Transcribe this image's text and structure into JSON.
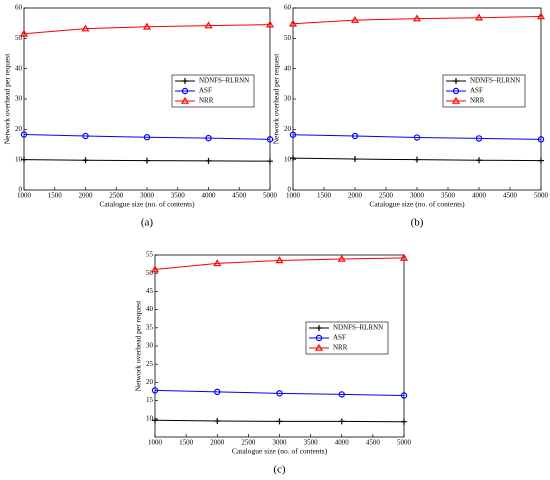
{
  "chart_data": [
    {
      "type": "line",
      "label": "(a)",
      "x_label": "Catalogue size (no. of contents)",
      "y_label": "Network overhead per request",
      "x": [
        1000,
        2000,
        3000,
        4000,
        5000
      ],
      "xlim": [
        1000,
        5000
      ],
      "xticks": [
        1000,
        1500,
        2000,
        2500,
        3000,
        3500,
        4000,
        4500,
        5000
      ],
      "ylim": [
        0,
        60
      ],
      "yticks": [
        0,
        10,
        20,
        30,
        40,
        50,
        60
      ],
      "legend": "center right",
      "series": [
        {
          "name": "NDNFS–RLRNN",
          "color": "#000000",
          "marker": "plus",
          "values": [
            10,
            9.8,
            9.7,
            9.6,
            9.5
          ]
        },
        {
          "name": "ASF",
          "color": "#0000ff",
          "marker": "circle",
          "values": [
            18.3,
            17.8,
            17.4,
            17.1,
            16.7
          ]
        },
        {
          "name": "NRR",
          "color": "#ff0000",
          "marker": "triangle",
          "values": [
            51.5,
            53.2,
            53.8,
            54.2,
            54.5
          ]
        }
      ]
    },
    {
      "type": "line",
      "label": "(b)",
      "x_label": "Catalogue size (no. of contents)",
      "y_label": "Network overhead per request",
      "x": [
        1000,
        2000,
        3000,
        4000,
        5000
      ],
      "xlim": [
        1000,
        5000
      ],
      "xticks": [
        1000,
        1500,
        2000,
        2500,
        3000,
        3500,
        4000,
        4500,
        5000
      ],
      "ylim": [
        0,
        60
      ],
      "yticks": [
        0,
        10,
        20,
        30,
        40,
        50,
        60
      ],
      "legend": "center right",
      "series": [
        {
          "name": "NDNFS–RLRNN",
          "color": "#000000",
          "marker": "plus",
          "values": [
            10.5,
            10.2,
            10,
            9.8,
            9.7
          ]
        },
        {
          "name": "ASF",
          "color": "#0000ff",
          "marker": "circle",
          "values": [
            18.2,
            17.8,
            17.3,
            17,
            16.7
          ]
        },
        {
          "name": "NRR",
          "color": "#ff0000",
          "marker": "triangle",
          "values": [
            54.8,
            56,
            56.5,
            56.8,
            57.2
          ]
        }
      ]
    },
    {
      "type": "line",
      "label": "(c)",
      "x_label": "Catalogue size (no. of contents)",
      "y_label": "Network overhead per request",
      "x": [
        1000,
        2000,
        3000,
        4000,
        5000
      ],
      "xlim": [
        1000,
        5000
      ],
      "xticks": [
        1000,
        1500,
        2000,
        2500,
        3000,
        3500,
        4000,
        4500,
        5000
      ],
      "ylim": [
        5,
        55
      ],
      "yticks": [
        10,
        15,
        20,
        25,
        30,
        35,
        40,
        45,
        50,
        55
      ],
      "legend": "center right",
      "series": [
        {
          "name": "NDNFS–RLRNN",
          "color": "#000000",
          "marker": "plus",
          "values": [
            9.6,
            9.4,
            9.3,
            9.3,
            9.2
          ]
        },
        {
          "name": "ASF",
          "color": "#0000ff",
          "marker": "circle",
          "values": [
            17.8,
            17.4,
            17,
            16.7,
            16.4
          ]
        },
        {
          "name": "NRR",
          "color": "#ff0000",
          "marker": "triangle",
          "values": [
            51,
            52.7,
            53.5,
            53.9,
            54.2
          ]
        }
      ]
    }
  ]
}
